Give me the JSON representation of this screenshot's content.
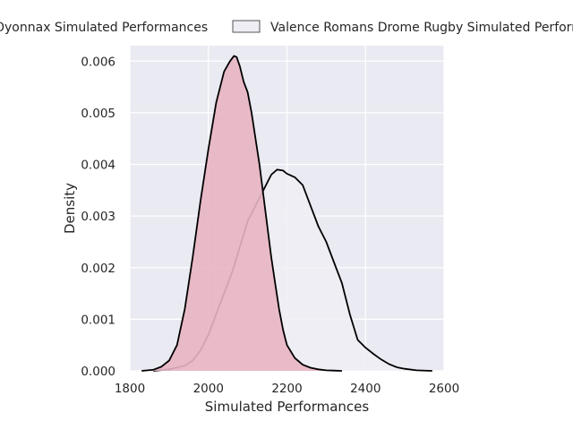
{
  "chart_data": {
    "type": "area",
    "subtype": "kde-density",
    "title": "",
    "xlabel": "Simulated Performances",
    "ylabel": "Density",
    "xlim": [
      1800,
      2600
    ],
    "ylim": [
      0,
      0.0063
    ],
    "xticks": [
      1800,
      2000,
      2200,
      2400,
      2600
    ],
    "xtick_labels": [
      "1800",
      "2000",
      "2200",
      "2400",
      "2600"
    ],
    "yticks": [
      0,
      0.001,
      0.002,
      0.003,
      0.004,
      0.005,
      0.006
    ],
    "ytick_labels": [
      "0.000",
      "0.001",
      "0.002",
      "0.003",
      "0.004",
      "0.005",
      "0.006"
    ],
    "grid": true,
    "legend_position": "top",
    "series": [
      {
        "name": "Oyonnax Simulated Performances",
        "fill": "#e8b4c2",
        "stroke": "#000000",
        "x": [
          1830,
          1860,
          1880,
          1900,
          1920,
          1940,
          1960,
          1980,
          2000,
          2020,
          2040,
          2055,
          2065,
          2072,
          2080,
          2090,
          2100,
          2110,
          2120,
          2130,
          2140,
          2150,
          2160,
          2170,
          2180,
          2190,
          2200,
          2220,
          2240,
          2260,
          2280,
          2300,
          2320,
          2340
        ],
        "y": [
          0.0,
          2e-05,
          8e-05,
          0.0002,
          0.0005,
          0.0012,
          0.0022,
          0.0033,
          0.0043,
          0.0052,
          0.0058,
          0.006,
          0.0061,
          0.00608,
          0.0059,
          0.0056,
          0.0054,
          0.005,
          0.0045,
          0.004,
          0.0034,
          0.0028,
          0.0022,
          0.0017,
          0.0012,
          0.0008,
          0.0005,
          0.00025,
          0.00012,
          6e-05,
          3e-05,
          1e-05,
          5e-06,
          0.0
        ]
      },
      {
        "name": "Valence Romans Drome Rugby Simulated Performances",
        "fill": "#efeef5",
        "stroke": "#000000",
        "x": [
          1860,
          1900,
          1940,
          1960,
          1980,
          2000,
          2020,
          2040,
          2060,
          2080,
          2100,
          2120,
          2140,
          2160,
          2175,
          2190,
          2200,
          2220,
          2240,
          2260,
          2280,
          2300,
          2320,
          2340,
          2360,
          2380,
          2400,
          2420,
          2440,
          2460,
          2480,
          2500,
          2530,
          2570
        ],
        "y": [
          0.0,
          3e-05,
          0.0001,
          0.0002,
          0.0004,
          0.0007,
          0.0011,
          0.0015,
          0.0019,
          0.0024,
          0.0029,
          0.0032,
          0.0035,
          0.0038,
          0.0039,
          0.00388,
          0.00382,
          0.00375,
          0.0036,
          0.0032,
          0.0028,
          0.0025,
          0.0021,
          0.0017,
          0.0011,
          0.0006,
          0.00045,
          0.00033,
          0.00022,
          0.00013,
          7e-05,
          4e-05,
          1e-05,
          0.0
        ]
      }
    ]
  }
}
